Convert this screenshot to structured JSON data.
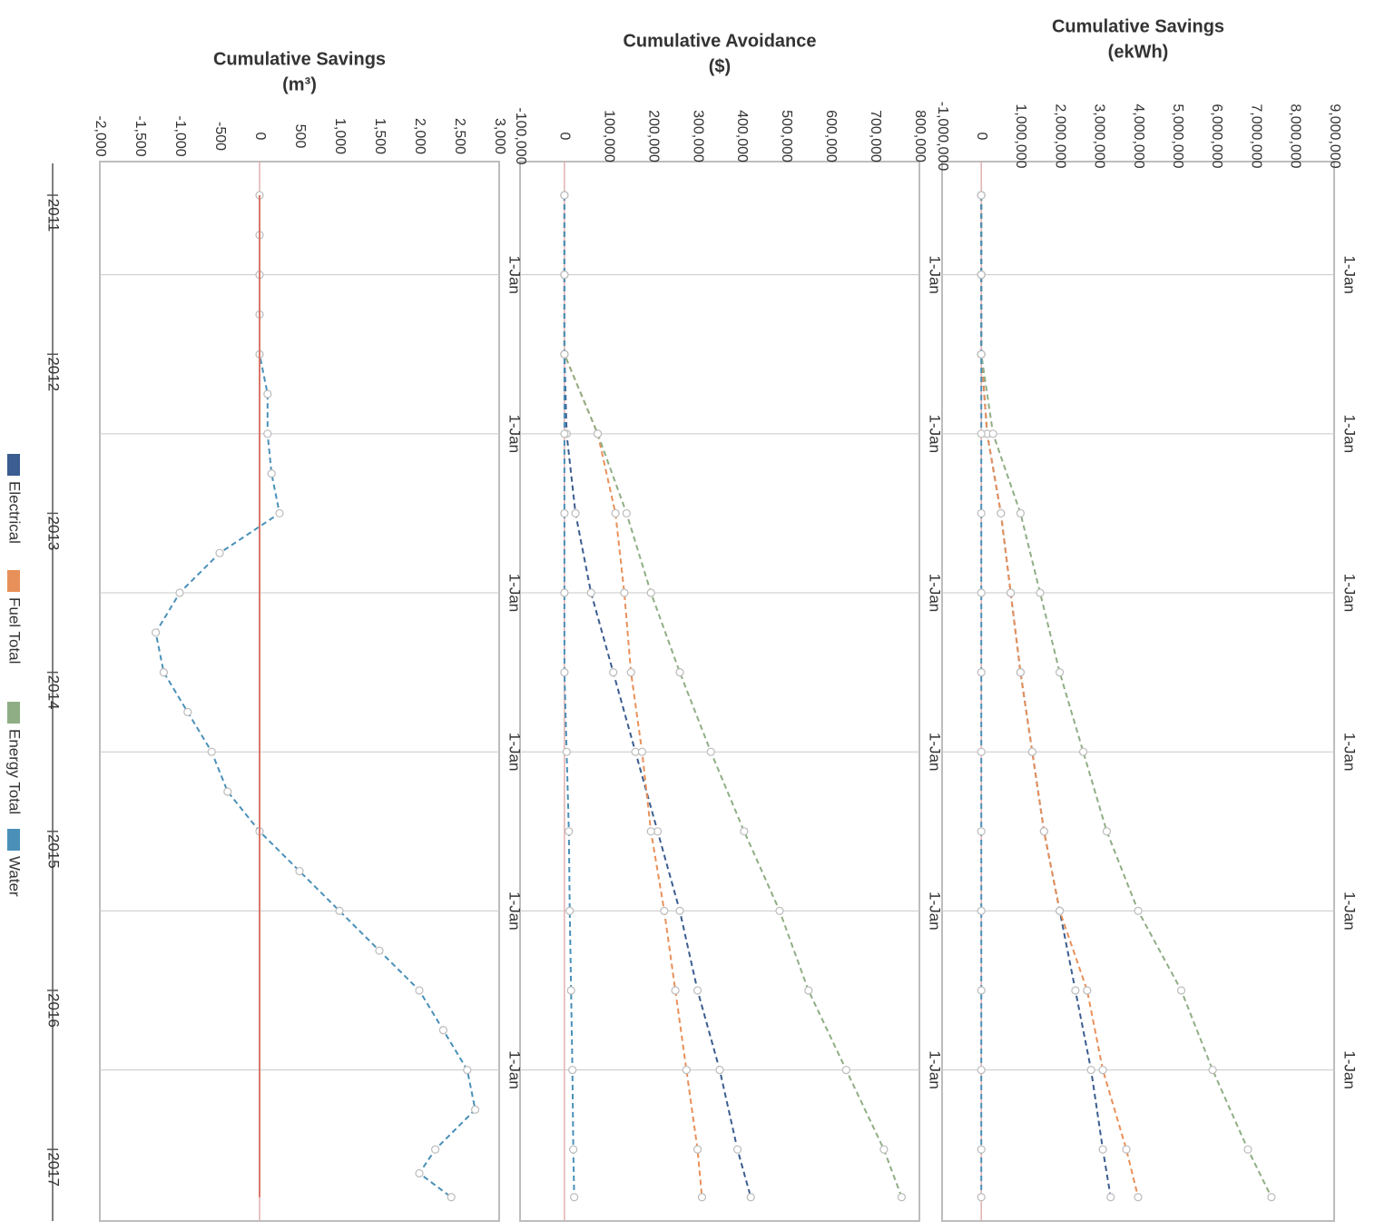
{
  "chart_data": [
    {
      "type": "line",
      "id": "ekwh",
      "title": "Cumulative Savings",
      "subtitle": "(ekWh)",
      "ylim": [
        -1000000,
        9000000
      ],
      "yticks": [
        "-1,000,000",
        "0",
        "1,000,000",
        "2,000,000",
        "3,000,000",
        "4,000,000",
        "5,000,000",
        "6,000,000",
        "7,000,000",
        "8,000,000",
        "9,000,000"
      ],
      "x": [
        2011.0,
        2011.5,
        2012.0,
        2012.5,
        2013.0,
        2013.5,
        2014.0,
        2014.5,
        2015.0,
        2015.5,
        2016.0,
        2016.5,
        2017.0,
        2017.3
      ],
      "series": [
        {
          "name": "Electrical",
          "color": "#3b5d8f",
          "values": [
            0,
            0,
            0,
            150000,
            500000,
            750000,
            1000000,
            1300000,
            1600000,
            2000000,
            2400000,
            2800000,
            3100000,
            3300000
          ]
        },
        {
          "name": "Fuel Total",
          "color": "#e8905a",
          "values": [
            0,
            0,
            0,
            150000,
            500000,
            750000,
            1000000,
            1300000,
            1600000,
            2000000,
            2700000,
            3100000,
            3700000,
            4000000
          ]
        },
        {
          "name": "Energy Total",
          "color": "#8fae85",
          "values": [
            0,
            0,
            0,
            300000,
            1000000,
            1500000,
            2000000,
            2600000,
            3200000,
            4000000,
            5100000,
            5900000,
            6800000,
            7400000
          ]
        },
        {
          "name": "Water",
          "color": "#4a90b8",
          "values": [
            0,
            0,
            0,
            0,
            0,
            0,
            0,
            0,
            0,
            0,
            0,
            0,
            0,
            0
          ]
        }
      ]
    },
    {
      "type": "line",
      "id": "dollars",
      "title": "Cumulative Avoidance",
      "subtitle": "($)",
      "ylim": [
        -100000,
        800000
      ],
      "yticks": [
        "-100,000",
        "0",
        "100,000",
        "200,000",
        "300,000",
        "400,000",
        "500,000",
        "600,000",
        "700,000",
        "800,000"
      ],
      "x": [
        2011.0,
        2011.5,
        2012.0,
        2012.5,
        2013.0,
        2013.5,
        2014.0,
        2014.5,
        2015.0,
        2015.5,
        2016.0,
        2016.5,
        2017.0,
        2017.3
      ],
      "series": [
        {
          "name": "Electrical",
          "color": "#3b5d8f",
          "values": [
            0,
            0,
            0,
            5000,
            25000,
            60000,
            110000,
            160000,
            210000,
            260000,
            300000,
            350000,
            390000,
            420000
          ]
        },
        {
          "name": "Fuel Total",
          "color": "#e8905a",
          "values": [
            0,
            0,
            0,
            75000,
            115000,
            135000,
            150000,
            175000,
            195000,
            225000,
            250000,
            275000,
            300000,
            310000
          ]
        },
        {
          "name": "Energy Total",
          "color": "#8fae85",
          "values": [
            0,
            0,
            0,
            75000,
            140000,
            195000,
            260000,
            330000,
            405000,
            485000,
            550000,
            635000,
            720000,
            760000
          ]
        },
        {
          "name": "Water",
          "color": "#4a90b8",
          "values": [
            0,
            0,
            0,
            0,
            0,
            0,
            0,
            5000,
            10000,
            12000,
            15000,
            18000,
            20000,
            22000
          ]
        }
      ]
    },
    {
      "type": "line",
      "id": "m3",
      "title": "Cumulative Savings",
      "subtitle": "(m³)",
      "ylim": [
        -2000,
        3000
      ],
      "yticks": [
        "-2,000",
        "-1,500",
        "-1,000",
        "-500",
        "0",
        "500",
        "1,000",
        "1,500",
        "2,000",
        "2,500",
        "3,000"
      ],
      "x": [
        2011.0,
        2011.25,
        2011.5,
        2011.75,
        2012.0,
        2012.25,
        2012.5,
        2012.75,
        2013.0,
        2013.25,
        2013.5,
        2013.75,
        2014.0,
        2014.25,
        2014.5,
        2014.75,
        2015.0,
        2015.25,
        2015.5,
        2015.75,
        2016.0,
        2016.25,
        2016.5,
        2016.75,
        2017.0,
        2017.15,
        2017.3
      ],
      "series": [
        {
          "name": "Water",
          "color": "#4a90b8",
          "values": [
            0,
            0,
            0,
            0,
            0,
            100,
            100,
            150,
            250,
            -500,
            -1000,
            -1300,
            -1200,
            -900,
            -600,
            -400,
            0,
            500,
            1000,
            1500,
            2000,
            2300,
            2600,
            2700,
            2200,
            2000,
            2400
          ]
        },
        {
          "name": "Fuel Total",
          "color": "#d9776b",
          "values": [
            0,
            0,
            0,
            0,
            0,
            0,
            0,
            0,
            0,
            0,
            0,
            0,
            0,
            0,
            0,
            0,
            0,
            0,
            0,
            0,
            0,
            0,
            0,
            0,
            0,
            0,
            0
          ]
        }
      ]
    }
  ],
  "time_axis": {
    "years": [
      "2011",
      "2012",
      "2013",
      "2014",
      "2015",
      "2016",
      "2017"
    ],
    "jan_label": "1-Jan"
  },
  "legend": [
    {
      "label": "Electrical",
      "color": "#3b5d8f"
    },
    {
      "label": "Fuel Total",
      "color": "#e8905a"
    },
    {
      "label": "Energy Total",
      "color": "#8fae85"
    },
    {
      "label": "Water",
      "color": "#4a90b8"
    }
  ]
}
